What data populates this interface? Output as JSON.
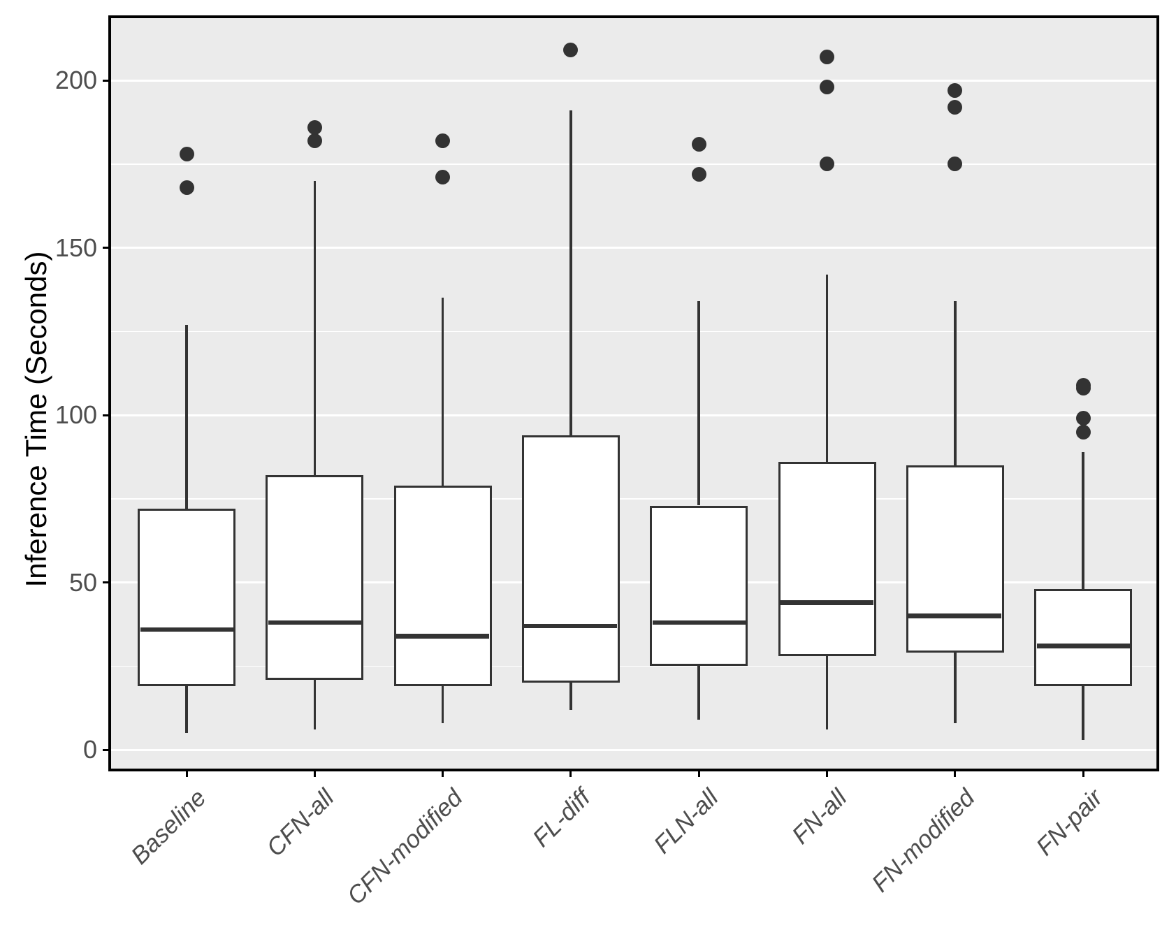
{
  "chart_data": {
    "type": "boxplot",
    "title": "",
    "xlabel": "",
    "ylabel": "Inference Time (Seconds)",
    "categories": [
      "Baseline",
      "CFN-all",
      "CFN-modified",
      "FL-diff",
      "FLN-all",
      "FN-all",
      "FN-modified",
      "FN-pair"
    ],
    "y_ticks": [
      0,
      50,
      100,
      150,
      200
    ],
    "minor_gridlines": [
      25,
      75,
      125,
      175
    ],
    "ylim": [
      -6,
      219
    ],
    "grid": true,
    "legend": "none",
    "series": [
      {
        "category": "Baseline",
        "whisker_low": 5,
        "q1": 19,
        "median": 36,
        "q3": 72,
        "whisker_high": 127,
        "outliers": [
          168,
          178
        ]
      },
      {
        "category": "CFN-all",
        "whisker_low": 6,
        "q1": 21,
        "median": 38,
        "q3": 82,
        "whisker_high": 170,
        "outliers": [
          182,
          186
        ]
      },
      {
        "category": "CFN-modified",
        "whisker_low": 8,
        "q1": 19,
        "median": 34,
        "q3": 79,
        "whisker_high": 135,
        "outliers": [
          171,
          182
        ]
      },
      {
        "category": "FL-diff",
        "whisker_low": 12,
        "q1": 20,
        "median": 37,
        "q3": 94,
        "whisker_high": 191,
        "outliers": [
          209
        ]
      },
      {
        "category": "FLN-all",
        "whisker_low": 9,
        "q1": 25,
        "median": 38,
        "q3": 73,
        "whisker_high": 134,
        "outliers": [
          172,
          181
        ]
      },
      {
        "category": "FN-all",
        "whisker_low": 6,
        "q1": 28,
        "median": 44,
        "q3": 86,
        "whisker_high": 142,
        "outliers": [
          175,
          198,
          207
        ]
      },
      {
        "category": "FN-modified",
        "whisker_low": 8,
        "q1": 29,
        "median": 40,
        "q3": 85,
        "whisker_high": 134,
        "outliers": [
          175,
          192,
          197
        ]
      },
      {
        "category": "FN-pair",
        "whisker_low": 3,
        "q1": 19,
        "median": 31,
        "q3": 48,
        "whisker_high": 89,
        "outliers": [
          95,
          99,
          108,
          109
        ]
      }
    ],
    "colors": {
      "panel_bg": "#EBEBEB",
      "gridline": "#FFFFFF",
      "box_fill": "#FFFFFF",
      "box_stroke": "#333333",
      "outlier": "#333333",
      "panel_border": "#000000",
      "axis_text": "#4D4D4D",
      "axis_title": "#000000",
      "tick_mark": "#000000"
    }
  }
}
